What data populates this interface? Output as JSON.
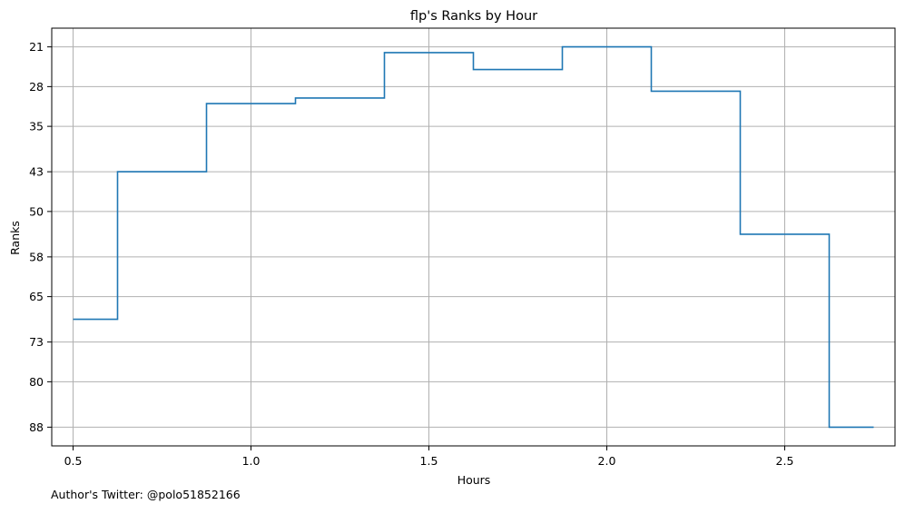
{
  "chart_data": {
    "type": "line",
    "drawstyle": "steps-mid",
    "title": "flp's Ranks by Hour",
    "xlabel": "Hours",
    "ylabel": "Ranks",
    "y_inverted": true,
    "grid": true,
    "xlim": [
      0.44,
      2.81
    ],
    "ylim": [
      91.3,
      17.7
    ],
    "xticks": [
      0.5,
      1.0,
      1.5,
      2.0,
      2.5
    ],
    "xtick_labels": [
      "0.5",
      "1.0",
      "1.5",
      "2.0",
      "2.5"
    ],
    "yticks": [
      21,
      28,
      35,
      43,
      50,
      58,
      65,
      73,
      80,
      88
    ],
    "ytick_labels": [
      "21",
      "28",
      "35",
      "43",
      "50",
      "58",
      "65",
      "73",
      "80",
      "88"
    ],
    "series": [
      {
        "color": "#1f77b4",
        "x": [
          0.5,
          0.75,
          1.0,
          1.25,
          1.5,
          1.75,
          2.0,
          2.25,
          2.5,
          2.75
        ],
        "y": [
          69,
          43,
          31,
          30,
          22,
          25,
          21,
          28.8,
          54,
          88
        ]
      }
    ]
  },
  "footer": {
    "credit": "Author's Twitter: @polo51852166"
  }
}
